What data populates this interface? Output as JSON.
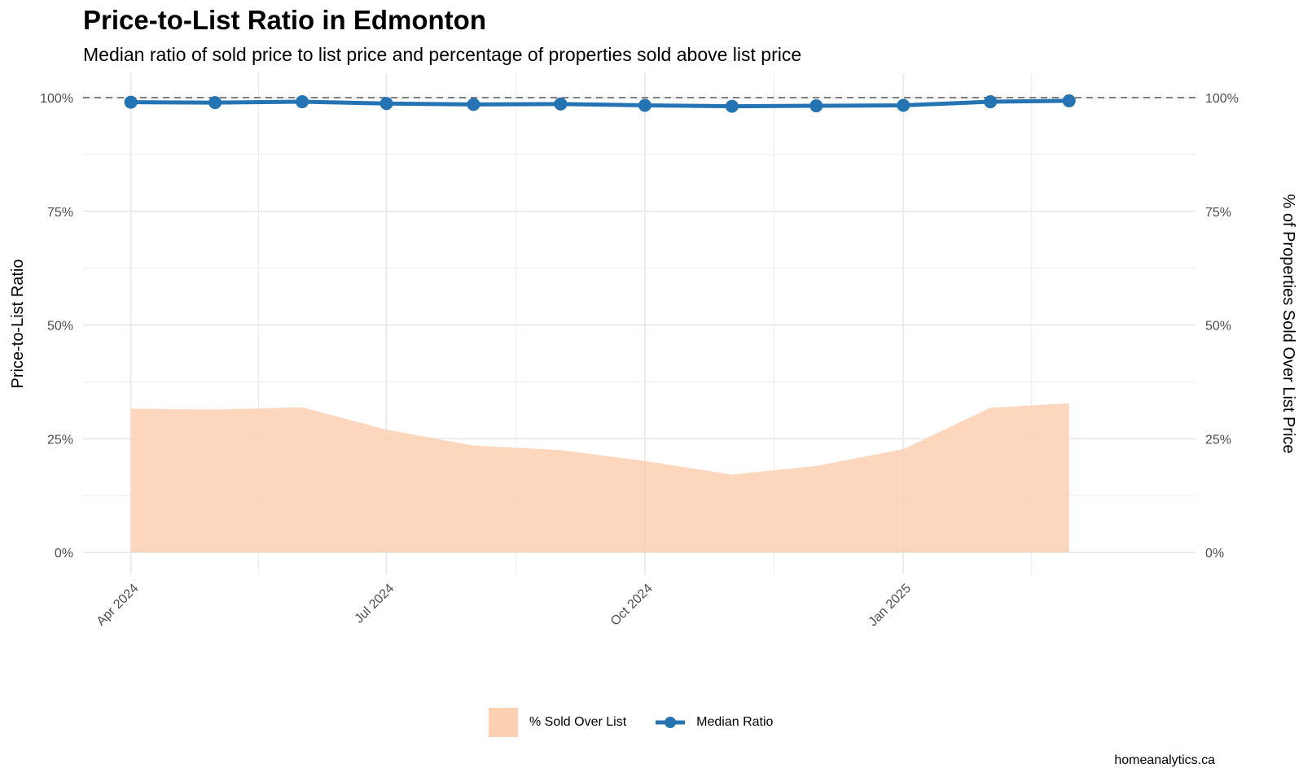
{
  "title": "Price-to-List Ratio in Edmonton",
  "subtitle": "Median ratio of sold price to list price and percentage of properties sold above list price",
  "caption": "homeanalytics.ca",
  "legend": {
    "area_label": "% Sold Over List",
    "line_label": "Median Ratio"
  },
  "colors": {
    "area": "#fdd0b2",
    "line": "#2474b4",
    "reference": "#808080",
    "grid": "#ebebeb"
  },
  "chart_data": {
    "type": "line",
    "ylabel_left": "Price-to-List Ratio",
    "ylabel_right": "% of Properties Sold Over List Price",
    "ylim": [
      0,
      100
    ],
    "y_ticks": [
      0,
      25,
      50,
      75,
      100
    ],
    "y_tick_labels": [
      "0%",
      "25%",
      "50%",
      "75%",
      "100%"
    ],
    "x_tick_dates": [
      "2024-04-01",
      "2024-07-01",
      "2024-10-01",
      "2025-01-01"
    ],
    "x_tick_labels": [
      "Apr 2024",
      "Jul 2024",
      "Oct 2024",
      "Jan 2025"
    ],
    "x_range": [
      "2024-03-15",
      "2025-04-15"
    ],
    "reference_line": 100,
    "grid": true,
    "legend_position": "bottom",
    "x": [
      "2024-04-01",
      "2024-05-01",
      "2024-06-01",
      "2024-07-01",
      "2024-08-01",
      "2024-09-01",
      "2024-10-01",
      "2024-11-01",
      "2024-12-01",
      "2025-01-01",
      "2025-02-01",
      "2025-03-01"
    ],
    "series": [
      {
        "name": "% Sold Over List",
        "kind": "area",
        "values": [
          31.6,
          31.4,
          31.9,
          27.0,
          23.5,
          22.5,
          20.1,
          17.1,
          19.0,
          22.7,
          31.8,
          32.8
        ]
      },
      {
        "name": "Median Ratio",
        "kind": "line",
        "values": [
          99.0,
          98.9,
          99.1,
          98.7,
          98.5,
          98.6,
          98.3,
          98.1,
          98.2,
          98.3,
          99.1,
          99.3
        ]
      }
    ]
  }
}
